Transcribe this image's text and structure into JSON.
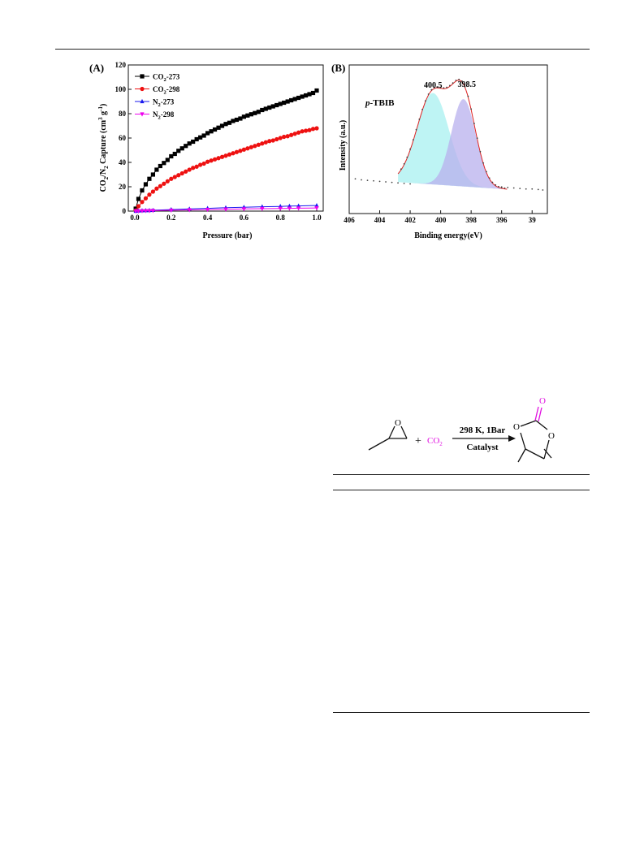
{
  "colors": {
    "co2_273": "#000000",
    "co2_298": "#ee1111",
    "n2_273": "#1a1aee",
    "n2_298": "#ee00ee",
    "peak1_fill": "#a8f0f0",
    "peak2_fill": "#b8b0ee",
    "envelope": "#dd2222",
    "co2_text": "#e010e0"
  },
  "chart_data": [
    {
      "panel_label": "(A)",
      "type": "line",
      "xlabel": "Pressure (bar)",
      "ylabel": "CO2/N2 Capture (cm3 g-1)",
      "ylabel_parts": {
        "a": "CO",
        "a_sub": "2",
        "b": "/N",
        "b_sub": "2",
        "c": " Capture (cm",
        "c_sup": "3",
        "d": " g",
        "d_sup": "-1",
        "e": ")"
      },
      "xlim": [
        0.0,
        1.0
      ],
      "ylim": [
        0,
        120
      ],
      "xticks": [
        "0.0",
        "0.2",
        "0.4",
        "0.6",
        "0.8",
        "1.0"
      ],
      "yticks": [
        "0",
        "20",
        "40",
        "60",
        "80",
        "100",
        "120"
      ],
      "legend_position": "top-left",
      "series": [
        {
          "name": "CO2-273",
          "label_main": "CO",
          "label_sub": "2",
          "label_tail": "-273",
          "marker": "square",
          "x": [
            0.005,
            0.02,
            0.04,
            0.06,
            0.08,
            0.1,
            0.12,
            0.14,
            0.16,
            0.18,
            0.2,
            0.22,
            0.24,
            0.26,
            0.28,
            0.3,
            0.32,
            0.34,
            0.36,
            0.38,
            0.4,
            0.42,
            0.44,
            0.46,
            0.48,
            0.5,
            0.52,
            0.54,
            0.56,
            0.58,
            0.6,
            0.62,
            0.64,
            0.66,
            0.68,
            0.7,
            0.72,
            0.74,
            0.76,
            0.78,
            0.8,
            0.82,
            0.84,
            0.86,
            0.88,
            0.9,
            0.92,
            0.94,
            0.96,
            0.98,
            1.0
          ],
          "y": [
            2,
            10,
            17,
            22,
            26.5,
            30,
            34,
            37,
            39.5,
            42,
            45,
            47,
            49.5,
            51.5,
            53.5,
            55.5,
            57,
            59,
            60.5,
            62,
            64,
            65.5,
            67,
            68.5,
            70,
            71.5,
            72.5,
            74,
            75,
            76,
            77.5,
            78.5,
            79.5,
            80.5,
            81.5,
            83,
            84,
            85,
            86,
            87,
            88,
            89,
            90,
            91,
            92,
            93,
            94,
            95,
            96,
            97,
            99
          ]
        },
        {
          "name": "CO2-298",
          "label_main": "CO",
          "label_sub": "2",
          "label_tail": "-298",
          "marker": "circle",
          "x": [
            0.005,
            0.02,
            0.04,
            0.06,
            0.08,
            0.1,
            0.12,
            0.14,
            0.16,
            0.18,
            0.2,
            0.22,
            0.24,
            0.26,
            0.28,
            0.3,
            0.32,
            0.34,
            0.36,
            0.38,
            0.4,
            0.42,
            0.44,
            0.46,
            0.48,
            0.5,
            0.52,
            0.54,
            0.56,
            0.58,
            0.6,
            0.62,
            0.64,
            0.66,
            0.68,
            0.7,
            0.72,
            0.74,
            0.76,
            0.78,
            0.8,
            0.82,
            0.84,
            0.86,
            0.88,
            0.9,
            0.92,
            0.94,
            0.96,
            0.98,
            1.0
          ],
          "y": [
            0.5,
            4,
            7.5,
            10.5,
            13.5,
            16,
            18.5,
            20.5,
            22.5,
            24.5,
            26.5,
            28,
            29.5,
            31,
            32.5,
            34,
            35.5,
            36.5,
            38,
            39,
            40.5,
            41.5,
            42.5,
            43.5,
            44.5,
            45.5,
            46.5,
            47.5,
            48.5,
            49.5,
            50.5,
            51.5,
            52.5,
            53.5,
            54.5,
            55.5,
            56.5,
            57.5,
            58,
            59,
            60,
            61,
            61.5,
            62.5,
            63.5,
            64.5,
            65.5,
            66,
            66.5,
            67.5,
            68
          ]
        },
        {
          "name": "N2-273",
          "label_main": "N",
          "label_sub": "2",
          "label_tail": "-273",
          "marker": "triangle-up",
          "x": [
            0.005,
            0.02,
            0.04,
            0.06,
            0.08,
            0.1,
            0.2,
            0.3,
            0.4,
            0.5,
            0.6,
            0.7,
            0.8,
            0.85,
            0.9,
            1.0
          ],
          "y": [
            0,
            0.2,
            0.4,
            0.5,
            0.6,
            0.7,
            1.3,
            1.8,
            2.3,
            2.8,
            3.2,
            3.6,
            3.9,
            4.1,
            4.3,
            4.6
          ]
        },
        {
          "name": "N2-298",
          "label_main": "N",
          "label_sub": "2",
          "label_tail": "-298",
          "marker": "triangle-down",
          "x": [
            0.005,
            0.02,
            0.04,
            0.06,
            0.08,
            0.1,
            0.2,
            0.3,
            0.4,
            0.5,
            0.6,
            0.7,
            0.8,
            0.85,
            0.9,
            1.0
          ],
          "y": [
            0,
            0.1,
            0.2,
            0.3,
            0.3,
            0.4,
            0.7,
            1.0,
            1.3,
            1.5,
            1.8,
            2.0,
            2.2,
            2.3,
            2.4,
            2.6
          ]
        }
      ]
    },
    {
      "panel_label": "(B)",
      "type": "line",
      "sample_label_italic": "p",
      "sample_label_rest": "-TBIB",
      "xlabel": "Binding energy(eV)",
      "ylabel": "Intensity (a.u.)",
      "xlim": [
        406,
        393
      ],
      "xticks": [
        "406",
        "404",
        "402",
        "400",
        "398",
        "396",
        "39"
      ],
      "peak_labels": [
        "400.5",
        "398.5"
      ],
      "peaks": [
        {
          "center": 400.5,
          "height": 0.9,
          "width": 1.05
        },
        {
          "center": 398.5,
          "height": 0.86,
          "width": 0.8
        }
      ],
      "background_points": {
        "x": [
          405.6,
          405.2,
          404.8,
          404.4,
          404.0,
          403.6,
          403.2,
          402.8,
          402.4,
          402.0,
          396.0,
          395.6,
          395.2,
          394.8,
          394.4,
          394.0,
          393.6,
          393.3
        ],
        "y": [
          0.07,
          0.06,
          0.055,
          0.05,
          0.045,
          0.04,
          0.035,
          0.03,
          0.025,
          0.02,
          -0.01,
          -0.015,
          -0.02,
          -0.025,
          -0.03,
          -0.03,
          -0.035,
          -0.04
        ]
      }
    }
  ],
  "scheme": {
    "plus": "+",
    "co2_main": "CO",
    "co2_sub": "2",
    "condition": "298 K, 1Bar",
    "catalyst": "Catalyst",
    "atom_o_epoxide": "O",
    "atom_o_carbonyl": "O",
    "atom_o_ring_left": "O",
    "atom_o_ring_right": "O"
  }
}
